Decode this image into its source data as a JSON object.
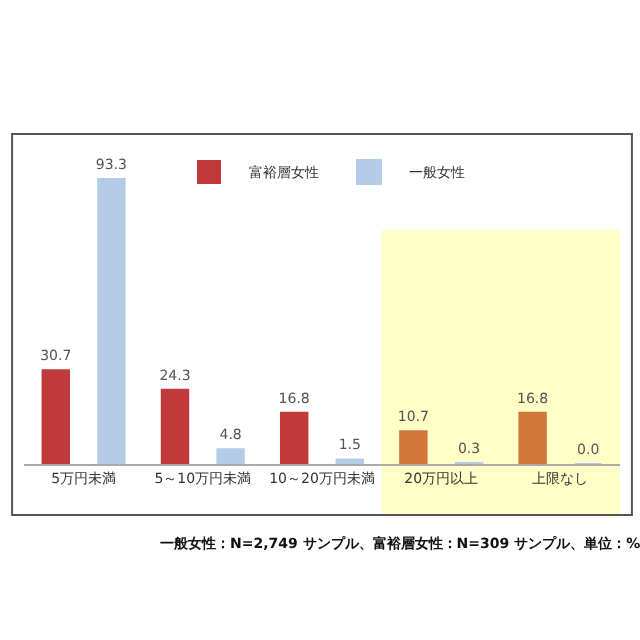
{
  "chart_data": {
    "type": "bar",
    "categories": [
      "5万円未満",
      "5～10万円未満",
      "10～20万円未満",
      "20万円以上",
      "上限なし"
    ],
    "series": [
      {
        "name": "富裕層女性",
        "color": "#c0393b",
        "colors": [
          "#c0393b",
          "#c0393b",
          "#c0393b",
          "#d2773a",
          "#d2773a"
        ],
        "values": [
          30.7,
          24.3,
          16.8,
          10.7,
          16.8
        ],
        "value_labels": [
          "30.7",
          "24.3",
          "16.8",
          "10.7",
          "16.8"
        ]
      },
      {
        "name": "一般女性",
        "color": "#b4cce8",
        "values": [
          93.3,
          4.8,
          1.5,
          0.3,
          0.0
        ],
        "value_labels": [
          "93.3",
          "4.8",
          "1.5",
          "0.3",
          "0.0"
        ]
      }
    ],
    "legend": "top",
    "grid": false,
    "bands": [
      {
        "axis": "x",
        "from": "20万円以上",
        "to": "上限なし",
        "color": "#ffffc8"
      }
    ],
    "annotations": [
      "一般女性：N=2,749 サンプル、富裕層女性：N=309 サンプル、単位：%"
    ]
  }
}
